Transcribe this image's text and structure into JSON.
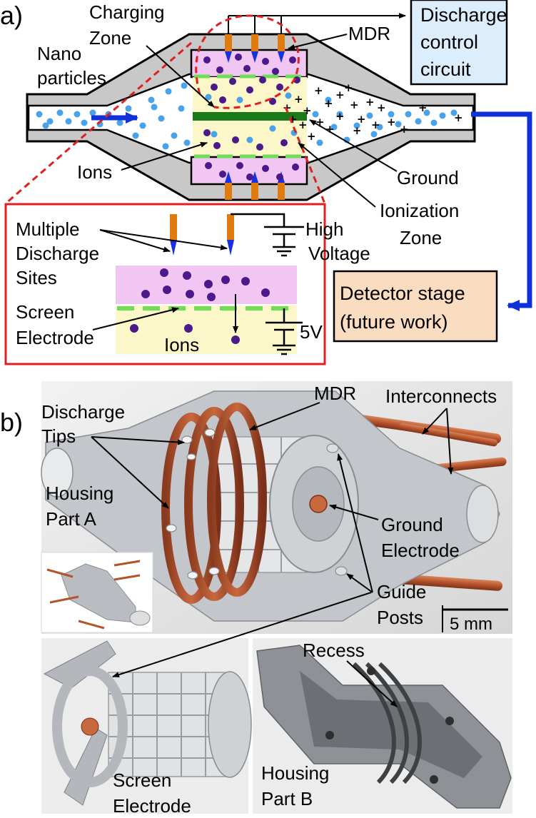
{
  "panel_a": {
    "panel_label": "a)",
    "labels": {
      "nano_particles_1": "Nano",
      "nano_particles_2": "particles",
      "charging_zone_1": "Charging",
      "charging_zone_2": "Zone",
      "mdr": "MDR",
      "discharge_control_1": "Discharge",
      "discharge_control_2": "control",
      "discharge_control_3": "circuit",
      "ions": "Ions",
      "ground": "Ground",
      "ionization_zone_1": "Ionization",
      "ionization_zone_2": "Zone",
      "detector_stage_1": "Detector stage",
      "detector_stage_2": "(future work)"
    },
    "inset": {
      "multiple_discharge_1": "Multiple",
      "multiple_discharge_2": "Discharge",
      "multiple_discharge_3": "Sites",
      "high_voltage_1": "High",
      "high_voltage_2": "Voltage",
      "screen_electrode_1": "Screen",
      "screen_electrode_2": "Electrode",
      "ions": "Ions",
      "five_volt": "5V"
    },
    "colors": {
      "housing": "#c8c8c8",
      "charging_zone": "#f1c6f3",
      "ionization_zone": "#fbf7c8",
      "ground_electrode": "#1a7a1a",
      "screen_electrode": "#6fdc5a",
      "tips": "#e07b10",
      "tip_points": "#1730e6",
      "nanoparticles": "#4aa3e8",
      "ions": "#4b1a8a",
      "flow_arrow": "#1030d8",
      "inset_border": "#e02020",
      "control_box": "#dceefb",
      "detector_box": "#fadcc0"
    }
  },
  "panel_b": {
    "panel_label": "b)",
    "labels": {
      "discharge_tips_1": "Discharge",
      "discharge_tips_2": "Tips",
      "mdr": "MDR",
      "interconnects": "Interconnects",
      "housing_a_1": "Housing",
      "housing_a_2": "Part A",
      "ground_electrode_1": "Ground",
      "ground_electrode_2": "Electrode",
      "guide_posts_1": "Guide",
      "guide_posts_2": "Posts",
      "scale_bar": "5 mm",
      "recess": "Recess",
      "screen_electrode_1": "Screen",
      "screen_electrode_2": "Electrode",
      "housing_b_1": "Housing",
      "housing_b_2": "Part B"
    },
    "colors": {
      "metal": "#b9bcc0",
      "copper": "#b0502c",
      "dark_metal": "#5f6266"
    }
  }
}
